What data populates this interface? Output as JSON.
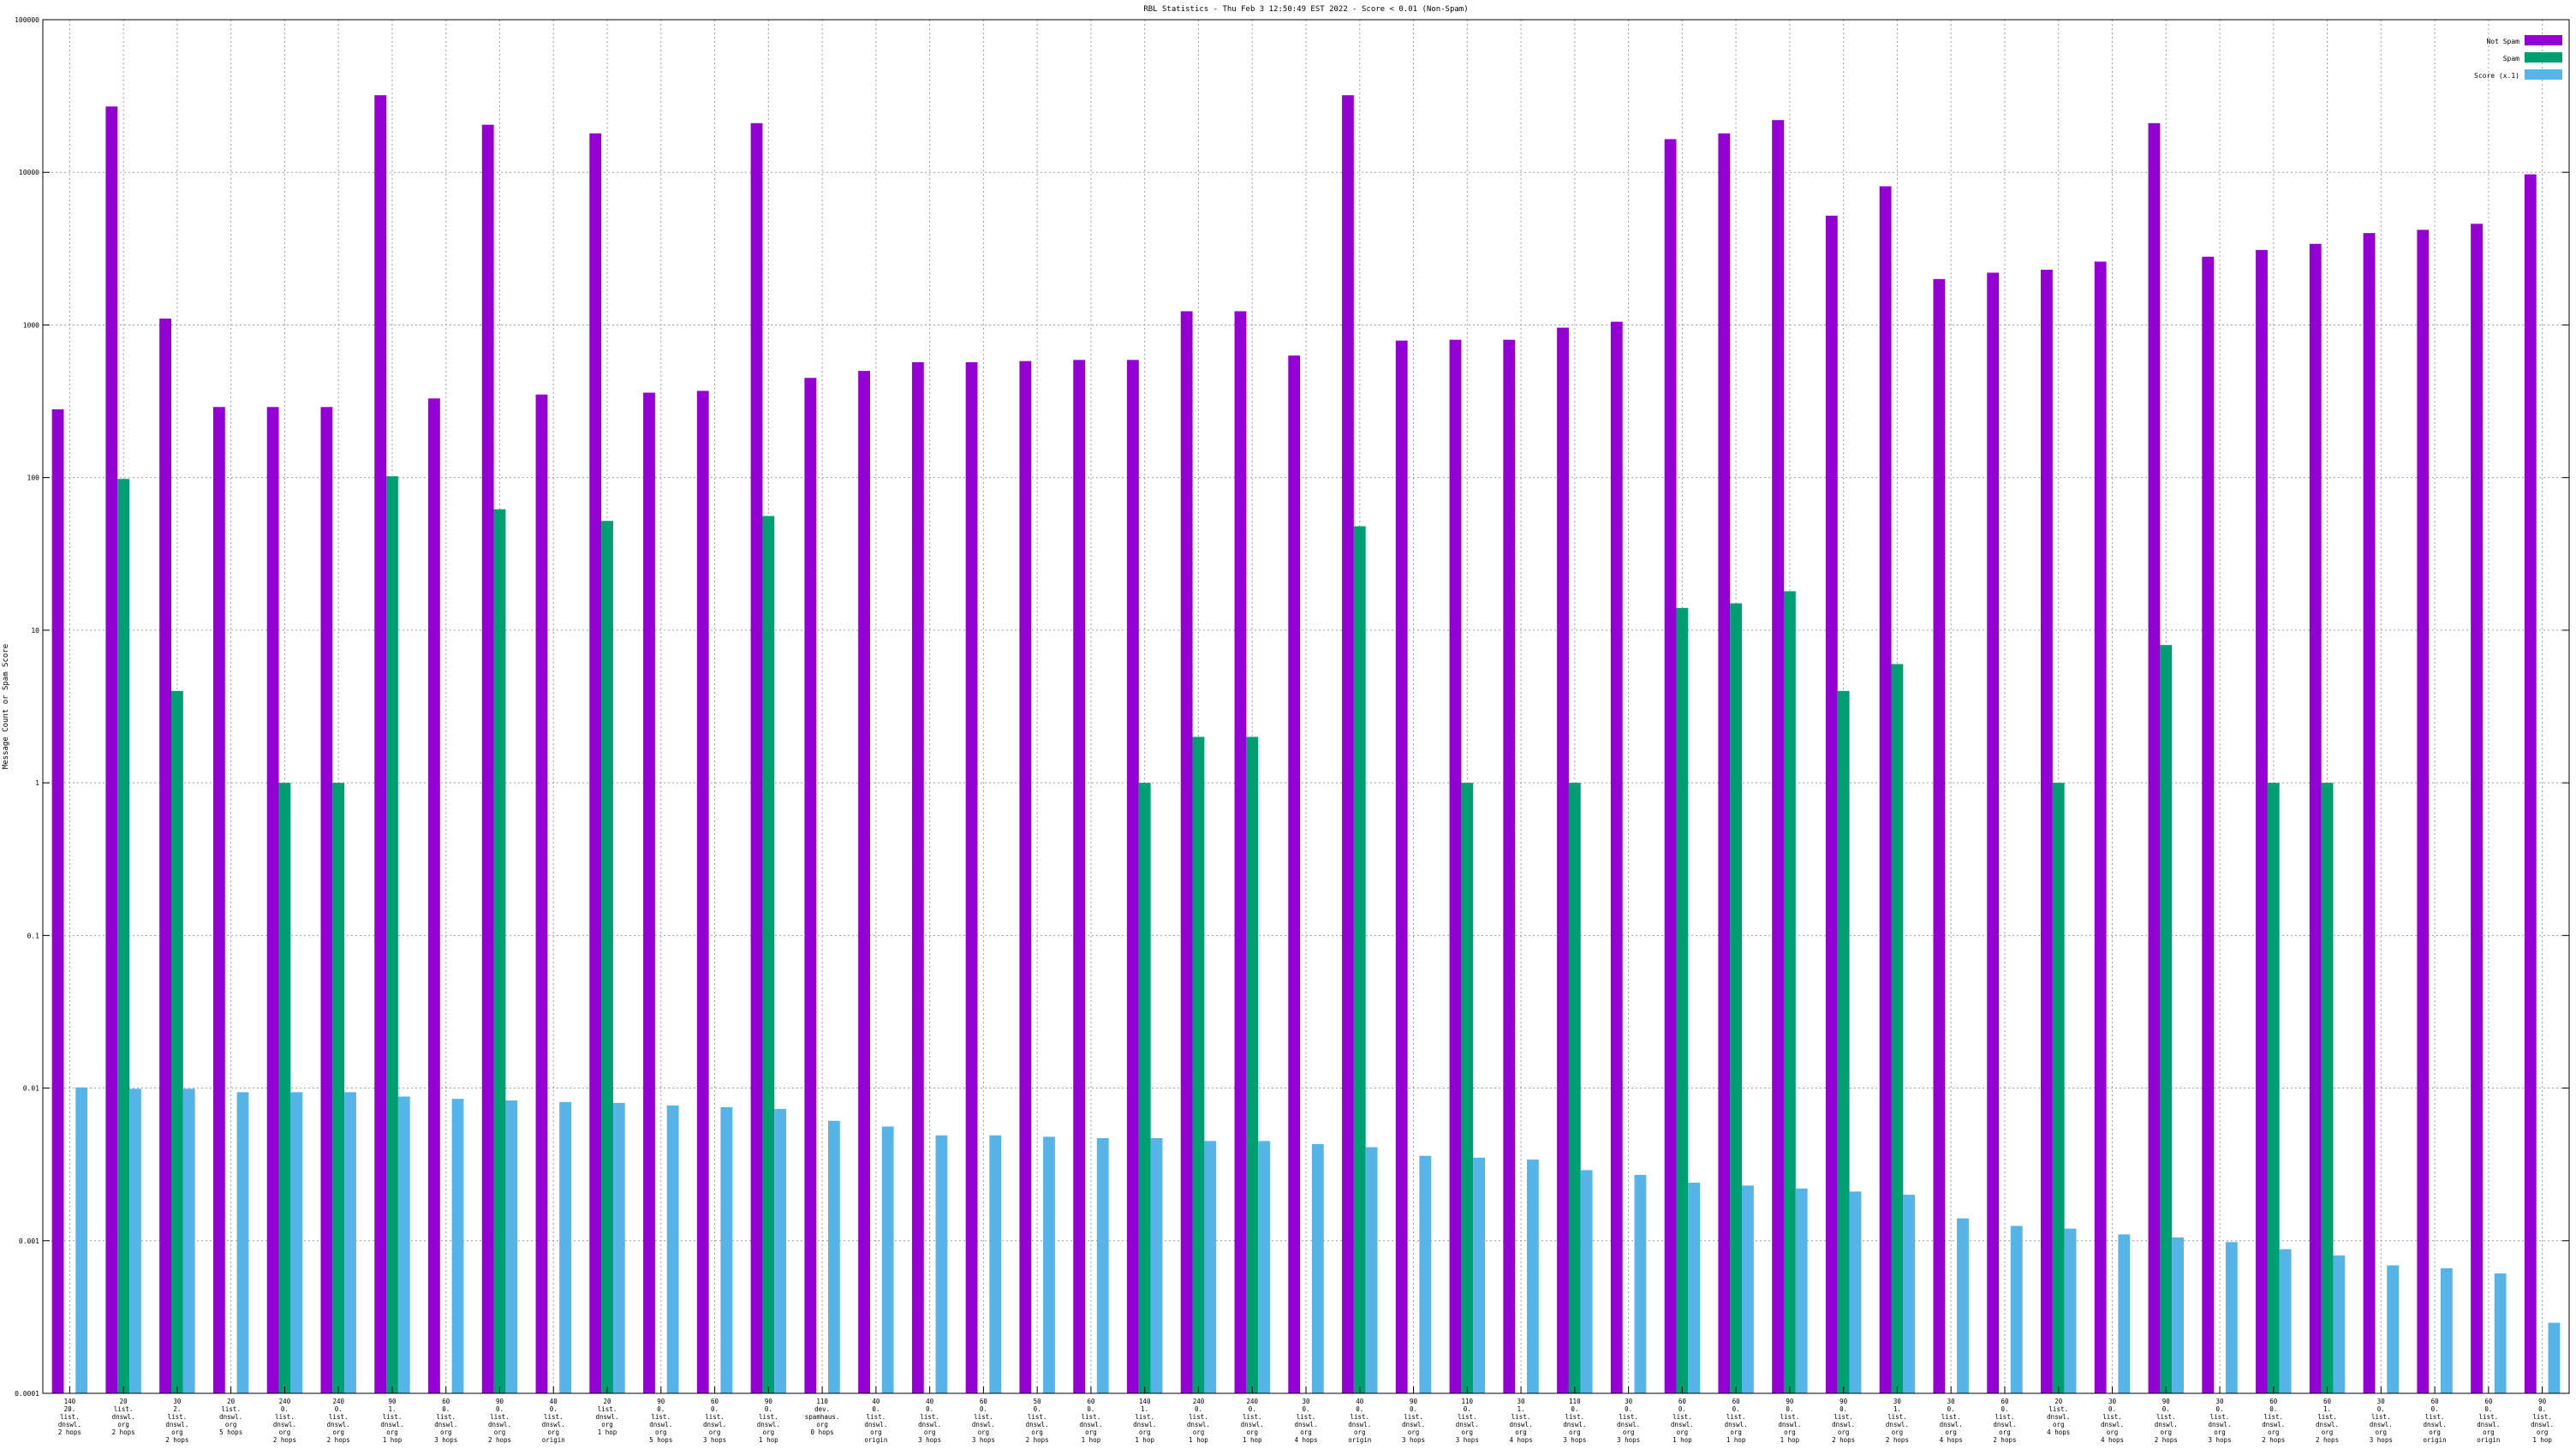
{
  "chart_data": {
    "type": "bar",
    "title": "RBL Statistics - Thu Feb  3 12:50:49 EST 2022 - Score < 0.01 (Non-Spam)",
    "ylabel": "Message Count or Spam Score",
    "xlabel": "",
    "yscale": "log",
    "ylim": [
      0.0001,
      100000
    ],
    "y_ticks": [
      "0.0001",
      "0.001",
      "0.01",
      "0.1",
      "1",
      "10",
      "100",
      "1000",
      "10000",
      "100000"
    ],
    "grid": true,
    "legend_position": "top-right",
    "categories": [
      [
        "140",
        "20.",
        "list.",
        "dnswl.",
        "2 hops"
      ],
      [
        "20",
        "list.",
        "dnswl.",
        "org",
        "2 hops"
      ],
      [
        "30",
        "2.",
        "list.",
        "dnswl.",
        "org",
        "2 hops"
      ],
      [
        "20",
        "list.",
        "dnswl.",
        "org",
        "5 hops"
      ],
      [
        "240",
        "0.",
        "list.",
        "dnswl.",
        "org",
        "2 hops"
      ],
      [
        "240",
        "0.",
        "list.",
        "dnswl.",
        "org",
        "2 hops"
      ],
      [
        "90",
        "1.",
        "list.",
        "dnswl.",
        "org",
        "1 hop"
      ],
      [
        "60",
        "0.",
        "list.",
        "dnswl.",
        "org",
        "3 hops"
      ],
      [
        "90",
        "0.",
        "list.",
        "dnswl.",
        "org",
        "2 hops"
      ],
      [
        "40",
        "0.",
        "list.",
        "dnswl.",
        "org",
        "origin"
      ],
      [
        "20",
        "list.",
        "dnswl.",
        "org",
        "1 hop"
      ],
      [
        "90",
        "0.",
        "list.",
        "dnswl.",
        "org",
        "5 hops"
      ],
      [
        "60",
        "0.",
        "list.",
        "dnswl.",
        "org",
        "3 hops"
      ],
      [
        "90",
        "0.",
        "list.",
        "dnswl.",
        "org",
        "1 hop"
      ],
      [
        "110",
        "dev.",
        "spamhaus.",
        "org",
        "0 hops"
      ],
      [
        "40",
        "0.",
        "list.",
        "dnswl.",
        "org",
        "origin"
      ],
      [
        "40",
        "0.",
        "list.",
        "dnswl.",
        "org",
        "3 hops"
      ],
      [
        "60",
        "0.",
        "list.",
        "dnswl.",
        "org",
        "3 hops"
      ],
      [
        "50",
        "0.",
        "list.",
        "dnswl.",
        "org",
        "2 hops"
      ],
      [
        "60",
        "0.",
        "list.",
        "dnswl.",
        "org",
        "1 hop"
      ],
      [
        "140",
        "1.",
        "list.",
        "dnswl.",
        "org",
        "1 hop"
      ],
      [
        "240",
        "0.",
        "list.",
        "dnswl.",
        "org",
        "1 hop"
      ],
      [
        "240",
        "0.",
        "list.",
        "dnswl.",
        "org",
        "1 hop"
      ],
      [
        "30",
        "0.",
        "list.",
        "dnswl.",
        "org",
        "4 hops"
      ],
      [
        "40",
        "0.",
        "list.",
        "dnswl.",
        "org",
        "origin"
      ],
      [
        "90",
        "0.",
        "list.",
        "dnswl.",
        "org",
        "3 hops"
      ],
      [
        "110",
        "0.",
        "list.",
        "dnswl.",
        "org",
        "3 hops"
      ],
      [
        "30",
        "1.",
        "list.",
        "dnswl.",
        "org",
        "4 hops"
      ],
      [
        "110",
        "0.",
        "list.",
        "dnswl.",
        "org",
        "3 hops"
      ],
      [
        "30",
        "0.",
        "list.",
        "dnswl.",
        "org",
        "3 hops"
      ],
      [
        "60",
        "0.",
        "list.",
        "dnswl.",
        "org",
        "1 hop"
      ],
      [
        "60",
        "0.",
        "list.",
        "dnswl.",
        "org",
        "1 hop"
      ],
      [
        "90",
        "0.",
        "list.",
        "dnswl.",
        "org",
        "1 hop"
      ],
      [
        "90",
        "0.",
        "list.",
        "dnswl.",
        "org",
        "2 hops"
      ],
      [
        "30",
        "1.",
        "list.",
        "dnswl.",
        "org",
        "2 hops"
      ],
      [
        "30",
        "0.",
        "list.",
        "dnswl.",
        "org",
        "4 hops"
      ],
      [
        "60",
        "0.",
        "list.",
        "dnswl.",
        "org",
        "2 hops"
      ],
      [
        "20",
        "list.",
        "dnswl.",
        "org",
        "4 hops"
      ],
      [
        "30",
        "0.",
        "list.",
        "dnswl.",
        "org",
        "4 hops"
      ],
      [
        "90",
        "0.",
        "list.",
        "dnswl.",
        "org",
        "2 hops"
      ],
      [
        "30",
        "0.",
        "list.",
        "dnswl.",
        "org",
        "3 hops"
      ],
      [
        "60",
        "0.",
        "list.",
        "dnswl.",
        "org",
        "2 hops"
      ],
      [
        "60",
        "1.",
        "list.",
        "dnswl.",
        "org",
        "2 hops"
      ],
      [
        "30",
        "0.",
        "list.",
        "dnswl.",
        "org",
        "3 hops"
      ],
      [
        "60",
        "0.",
        "list.",
        "dnswl.",
        "org",
        "origin"
      ],
      [
        "60",
        "0.",
        "list.",
        "dnswl.",
        "org",
        "origin"
      ],
      [
        "90",
        "0.",
        "list.",
        "dnswl.",
        "org",
        "1 hop"
      ]
    ],
    "series": [
      {
        "name": "Not Spam",
        "color": "#9400d3",
        "values": [
          280,
          27000,
          1100,
          290,
          290,
          290,
          32000,
          330,
          20500,
          350,
          18000,
          360,
          370,
          21000,
          450,
          500,
          570,
          570,
          580,
          590,
          590,
          1230,
          1230,
          630,
          32000,
          790,
          800,
          800,
          960,
          1050,
          16500,
          18000,
          22000,
          5200,
          8100,
          2000,
          2200,
          2300,
          2600,
          21000,
          2800,
          3100,
          3400,
          4000,
          4200,
          4600,
          9700
        ]
      },
      {
        "name": "Spam",
        "color": "#009e73",
        "values": [
          null,
          98,
          4,
          null,
          1,
          1,
          102,
          null,
          62,
          null,
          52,
          null,
          null,
          56,
          null,
          null,
          null,
          null,
          null,
          null,
          1,
          2,
          2,
          null,
          48,
          null,
          1,
          null,
          1,
          null,
          14,
          15,
          18,
          4,
          6,
          null,
          null,
          1,
          null,
          8,
          null,
          1,
          1,
          null,
          null,
          null,
          null
        ]
      },
      {
        "name": "Score (x.1)",
        "color": "#56b4e9",
        "values": [
          0.0101,
          0.0099,
          0.0099,
          0.0094,
          0.0094,
          0.0094,
          0.0088,
          0.0085,
          0.0083,
          0.0081,
          0.008,
          0.0077,
          0.0075,
          0.0073,
          0.0061,
          0.0056,
          0.0049,
          0.0049,
          0.0048,
          0.0047,
          0.0047,
          0.0045,
          0.0045,
          0.0043,
          0.0041,
          0.0036,
          0.0035,
          0.0034,
          0.0029,
          0.0027,
          0.0024,
          0.0023,
          0.0022,
          0.0021,
          0.002,
          0.0014,
          0.00125,
          0.0012,
          0.0011,
          0.00105,
          0.00098,
          0.00088,
          0.0008,
          0.00069,
          0.00066,
          0.00061,
          0.00029
        ]
      }
    ]
  }
}
